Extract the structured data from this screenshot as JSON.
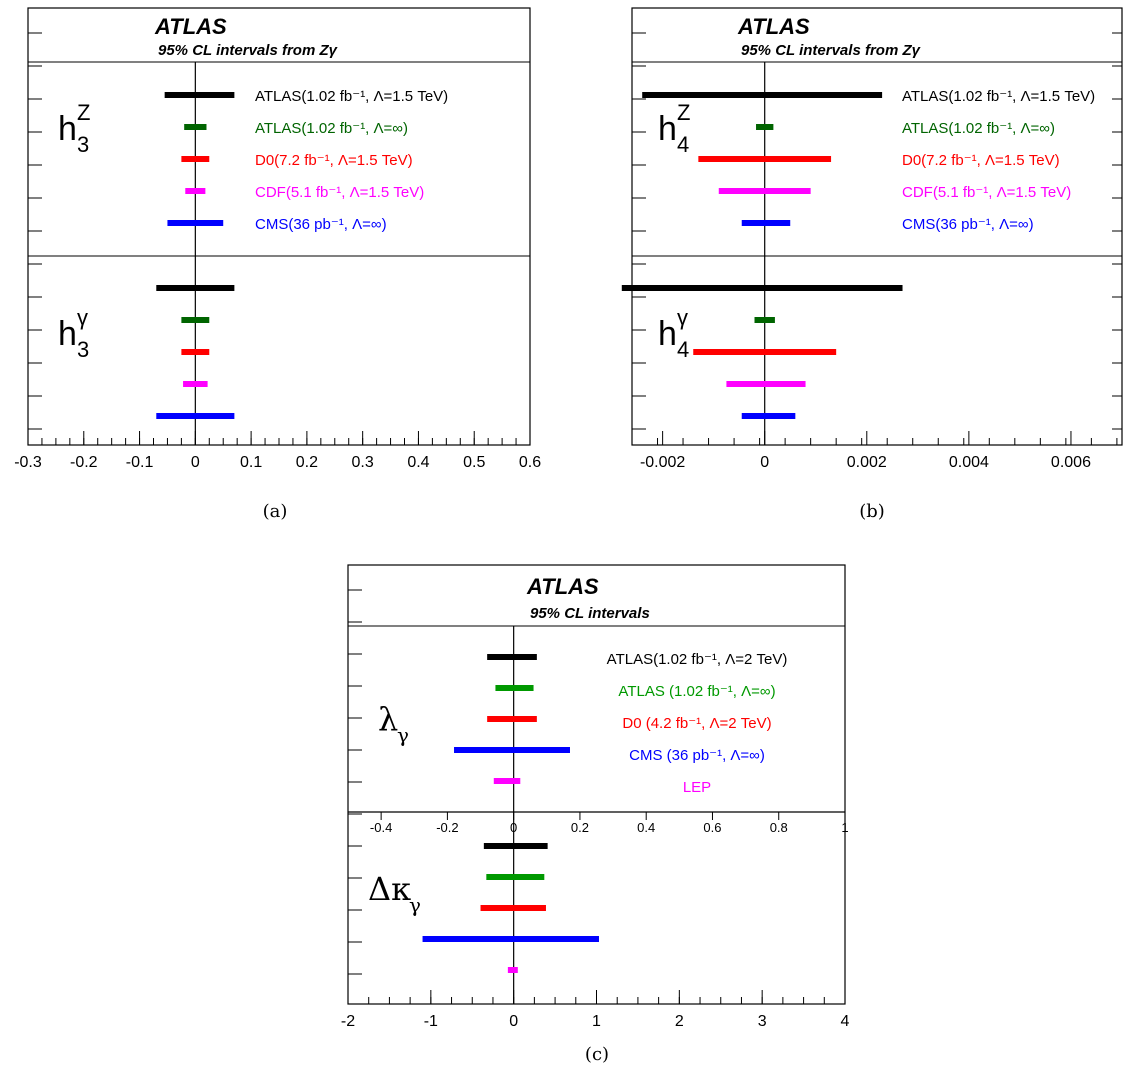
{
  "chart_data": [
    {
      "id": "a",
      "type": "interval",
      "caption": "(a)",
      "title": "ATLAS",
      "subtitle": "95% CL intervals from Zγ",
      "xlim": [
        -0.3,
        0.6
      ],
      "xticks": [
        "-0.3",
        "-0.2",
        "-0.1",
        "0",
        "0.1",
        "0.2",
        "0.3",
        "0.4",
        "0.5",
        "0.6"
      ],
      "xtick_values": [
        -0.3,
        -0.2,
        -0.1,
        0,
        0.1,
        0.2,
        0.3,
        0.4,
        0.5,
        0.6
      ],
      "legend": [
        {
          "text": "ATLAS(1.02 fb⁻¹, Λ=1.5 TeV)",
          "color": "#000000"
        },
        {
          "text": "ATLAS(1.02 fb⁻¹, Λ=∞)",
          "color": "#006400"
        },
        {
          "text": "D0(7.2 fb⁻¹, Λ=1.5 TeV)",
          "color": "#ff0000"
        },
        {
          "text": "CDF(5.1 fb⁻¹, Λ=1.5 TeV)",
          "color": "#ff00ff"
        },
        {
          "text": "CMS(36 pb⁻¹, Λ=∞)",
          "color": "#0000ff"
        }
      ],
      "groups": [
        {
          "label_main": "h",
          "label_sup": "Z",
          "label_sub": "3",
          "intervals": [
            {
              "low": -0.055,
              "high": 0.07,
              "color": "#000000"
            },
            {
              "low": -0.02,
              "high": 0.02,
              "color": "#006400"
            },
            {
              "low": -0.025,
              "high": 0.025,
              "color": "#ff0000"
            },
            {
              "low": -0.018,
              "high": 0.018,
              "color": "#ff00ff"
            },
            {
              "low": -0.05,
              "high": 0.05,
              "color": "#0000ff"
            }
          ]
        },
        {
          "label_main": "h",
          "label_sup": "γ",
          "label_sub": "3",
          "intervals": [
            {
              "low": -0.07,
              "high": 0.07,
              "color": "#000000"
            },
            {
              "low": -0.025,
              "high": 0.025,
              "color": "#006400"
            },
            {
              "low": -0.025,
              "high": 0.025,
              "color": "#ff0000"
            },
            {
              "low": -0.022,
              "high": 0.022,
              "color": "#ff00ff"
            },
            {
              "low": -0.07,
              "high": 0.07,
              "color": "#0000ff"
            }
          ]
        }
      ]
    },
    {
      "id": "b",
      "type": "interval",
      "caption": "(b)",
      "title": "ATLAS",
      "subtitle": "95%  CL intervals from Zγ",
      "xlim": [
        -0.0026,
        0.007
      ],
      "xticks": [
        "-0.002",
        "0",
        "0.002",
        "0.004",
        "0.006"
      ],
      "xtick_values": [
        -0.002,
        0,
        0.002,
        0.004,
        0.006
      ],
      "legend": [
        {
          "text": "ATLAS(1.02 fb⁻¹, Λ=1.5 TeV)",
          "color": "#000000"
        },
        {
          "text": "ATLAS(1.02 fb⁻¹, Λ=∞)",
          "color": "#006400"
        },
        {
          "text": "D0(7.2 fb⁻¹, Λ=1.5 TeV)",
          "color": "#ff0000"
        },
        {
          "text": "CDF(5.1 fb⁻¹, Λ=1.5 TeV)",
          "color": "#ff00ff"
        },
        {
          "text": "CMS(36 pb⁻¹, Λ=∞)",
          "color": "#0000ff"
        }
      ],
      "groups": [
        {
          "label_main": "h",
          "label_sup": "Z",
          "label_sub": "4",
          "intervals": [
            {
              "low": -0.0024,
              "high": 0.0023,
              "color": "#000000"
            },
            {
              "low": -0.00017,
              "high": 0.00017,
              "color": "#006400"
            },
            {
              "low": -0.0013,
              "high": 0.0013,
              "color": "#ff0000"
            },
            {
              "low": -0.0009,
              "high": 0.0009,
              "color": "#ff00ff"
            },
            {
              "low": -0.00045,
              "high": 0.0005,
              "color": "#0000ff"
            }
          ]
        },
        {
          "label_main": "h",
          "label_sup": "γ",
          "label_sub": "4",
          "intervals": [
            {
              "low": -0.0028,
              "high": 0.0027,
              "color": "#000000"
            },
            {
              "low": -0.0002,
              "high": 0.0002,
              "color": "#006400"
            },
            {
              "low": -0.0014,
              "high": 0.0014,
              "color": "#ff0000"
            },
            {
              "low": -0.00075,
              "high": 0.0008,
              "color": "#ff00ff"
            },
            {
              "low": -0.00045,
              "high": 0.0006,
              "color": "#0000ff"
            }
          ]
        }
      ]
    },
    {
      "id": "c",
      "type": "interval",
      "caption": "(c)",
      "title": "ATLAS",
      "subtitle": "95% CL intervals",
      "legend": [
        {
          "text": "ATLAS(1.02 fb⁻¹, Λ=2 TeV)",
          "color": "#000000"
        },
        {
          "text": "ATLAS (1.02 fb⁻¹, Λ=∞)",
          "color": "#009900"
        },
        {
          "text": "D0 (4.2 fb⁻¹, Λ=2 TeV)",
          "color": "#ff0000"
        },
        {
          "text": "CMS (36 pb⁻¹, Λ=∞)",
          "color": "#0000ff"
        },
        {
          "text": "LEP",
          "color": "#ff00ff"
        }
      ],
      "panels": [
        {
          "label_main": "λ",
          "label_sub": "γ",
          "xlim": [
            -0.5,
            1.0
          ],
          "xticks": [
            "-0.4",
            "-0.2",
            "0",
            "0.2",
            "0.4",
            "0.6",
            "0.8",
            "1"
          ],
          "xtick_values": [
            -0.4,
            -0.2,
            0,
            0.2,
            0.4,
            0.6,
            0.8,
            1.0
          ],
          "intervals": [
            {
              "low": -0.08,
              "high": 0.07,
              "color": "#000000"
            },
            {
              "low": -0.055,
              "high": 0.06,
              "color": "#009900"
            },
            {
              "low": -0.08,
              "high": 0.07,
              "color": "#ff0000"
            },
            {
              "low": -0.18,
              "high": 0.17,
              "color": "#0000ff"
            },
            {
              "low": -0.06,
              "high": 0.02,
              "color": "#ff00ff"
            }
          ]
        },
        {
          "label_main": "Δκ",
          "label_sub": "γ",
          "xlim": [
            -2,
            4
          ],
          "xticks": [
            "-2",
            "-1",
            "0",
            "1",
            "2",
            "3",
            "4"
          ],
          "xtick_values": [
            -2,
            -1,
            0,
            1,
            2,
            3,
            4
          ],
          "intervals": [
            {
              "low": -0.36,
              "high": 0.41,
              "color": "#000000"
            },
            {
              "low": -0.33,
              "high": 0.37,
              "color": "#009900"
            },
            {
              "low": -0.4,
              "high": 0.39,
              "color": "#ff0000"
            },
            {
              "low": -1.1,
              "high": 1.03,
              "color": "#0000ff"
            },
            {
              "low": -0.07,
              "high": 0.05,
              "color": "#ff00ff"
            }
          ]
        }
      ]
    }
  ]
}
